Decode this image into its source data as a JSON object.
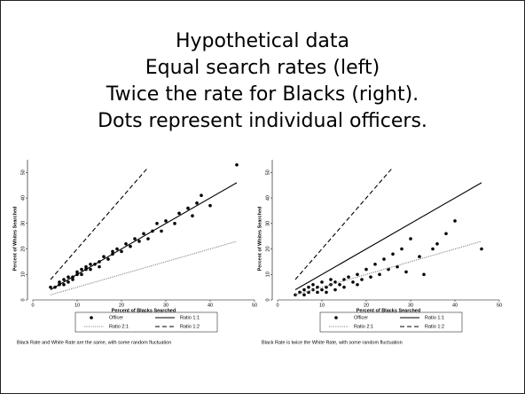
{
  "slide": {
    "title_lines": [
      "Hypothetical data",
      "Equal search rates (left)",
      "Twice the rate for Blacks (right).",
      "Dots represent individual officers."
    ]
  },
  "chart_data": [
    {
      "type": "scatter",
      "x_label": "Percent of Blacks Searched",
      "y_label": "Percent of Whites Searched",
      "caption": "Black Rate and White Rate are the same, with some random fluctuation",
      "xlim": [
        0,
        50
      ],
      "ylim": [
        0,
        55
      ],
      "xticks": [
        0,
        10,
        20,
        30,
        40,
        50
      ],
      "yticks": [
        0,
        10,
        20,
        30,
        40,
        50
      ],
      "series": [
        {
          "name": "Officer",
          "style": "markers",
          "color": "#000000",
          "x": [
            4,
            5,
            6,
            6,
            7,
            7,
            8,
            8,
            9,
            9,
            10,
            10,
            11,
            11,
            12,
            12,
            13,
            13,
            14,
            15,
            15,
            16,
            17,
            18,
            18,
            19,
            20,
            21,
            22,
            23,
            24,
            25,
            26,
            27,
            28,
            29,
            30,
            32,
            33,
            35,
            36,
            37,
            38,
            40,
            46
          ],
          "values": [
            5,
            5,
            6,
            7,
            6,
            8,
            7,
            9,
            9,
            8,
            10,
            11,
            10,
            12,
            12,
            13,
            12,
            14,
            14,
            15,
            13,
            17,
            16,
            18,
            19,
            20,
            19,
            22,
            21,
            24,
            23,
            26,
            24,
            27,
            30,
            27,
            31,
            30,
            34,
            36,
            33,
            38,
            41,
            37,
            53
          ]
        },
        {
          "name": "Ratio 1:1",
          "style": "solid",
          "color": "#000000",
          "x": [
            4,
            46
          ],
          "values": [
            4,
            46
          ]
        },
        {
          "name": "Ratio 2:1",
          "style": "dotted",
          "color": "#888888",
          "x": [
            4,
            46
          ],
          "values": [
            2,
            23
          ]
        },
        {
          "name": "Ratio 1:2",
          "style": "dashed",
          "color": "#000000",
          "x": [
            4,
            26
          ],
          "values": [
            8,
            52
          ]
        }
      ]
    },
    {
      "type": "scatter",
      "x_label": "Percent of Blacks Searched",
      "y_label": "Percent of Whites Searched",
      "caption": "Black Rate is twice the White Rate, with some random fluctuation",
      "xlim": [
        0,
        50
      ],
      "ylim": [
        0,
        55
      ],
      "xticks": [
        0,
        10,
        20,
        30,
        40,
        50
      ],
      "yticks": [
        0,
        10,
        20,
        30,
        40,
        50
      ],
      "series": [
        {
          "name": "Officer",
          "style": "markers",
          "color": "#000000",
          "x": [
            4,
            5,
            6,
            6,
            7,
            7,
            8,
            8,
            9,
            9,
            10,
            10,
            11,
            11,
            12,
            12,
            13,
            13,
            14,
            15,
            15,
            16,
            17,
            18,
            18,
            19,
            20,
            21,
            22,
            23,
            24,
            25,
            26,
            27,
            28,
            29,
            30,
            32,
            33,
            35,
            36,
            38,
            40,
            46
          ],
          "values": [
            2,
            3,
            4,
            2,
            5,
            3,
            4,
            6,
            5,
            3,
            4,
            7,
            5,
            3,
            6,
            8,
            4,
            7,
            6,
            8,
            5,
            9,
            7,
            10,
            6,
            8,
            12,
            9,
            14,
            10,
            16,
            12,
            18,
            13,
            20,
            11,
            24,
            17,
            10,
            20,
            22,
            26,
            31,
            20
          ]
        },
        {
          "name": "Ratio 1:1",
          "style": "solid",
          "color": "#000000",
          "x": [
            4,
            46
          ],
          "values": [
            4,
            46
          ]
        },
        {
          "name": "Ratio 2:1",
          "style": "dotted",
          "color": "#888888",
          "x": [
            4,
            46
          ],
          "values": [
            2,
            23
          ]
        },
        {
          "name": "Ratio 1:2",
          "style": "dashed",
          "color": "#000000",
          "x": [
            4,
            26
          ],
          "values": [
            8,
            52
          ]
        }
      ]
    }
  ]
}
